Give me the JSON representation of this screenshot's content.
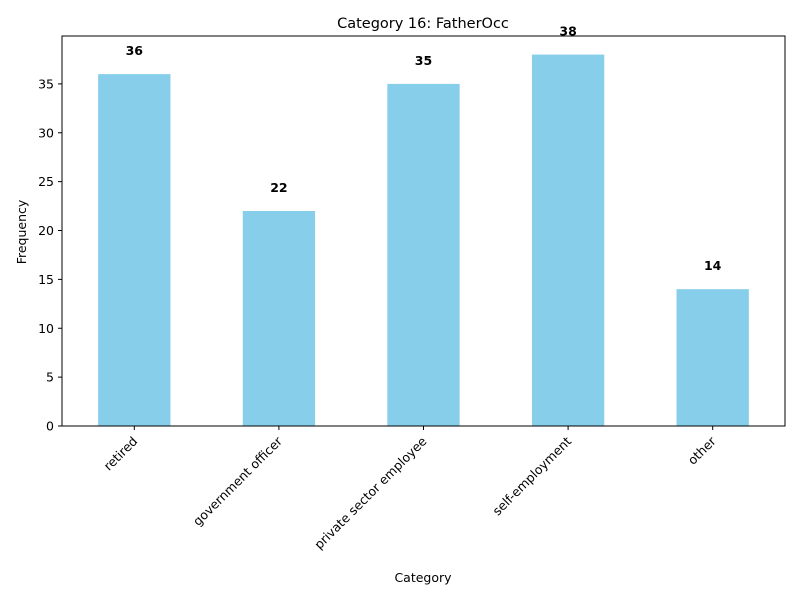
{
  "chart_data": {
    "type": "bar",
    "title": "Category 16: FatherOcc",
    "xlabel": "Category",
    "ylabel": "Frequency",
    "categories": [
      "retired",
      "government officer",
      "private sector employee",
      "self-employment",
      "other"
    ],
    "values": [
      36,
      22,
      35,
      38,
      14
    ],
    "data_labels": [
      "36",
      "22",
      "35",
      "38",
      "14"
    ],
    "ylim": [
      0,
      39.9
    ],
    "yticks": [
      0,
      5,
      10,
      15,
      20,
      25,
      30,
      35
    ],
    "ytick_labels": [
      "0",
      "5",
      "10",
      "15",
      "20",
      "25",
      "30",
      "35"
    ],
    "bar_color": "#87ceeb",
    "grid": false,
    "legend": "none",
    "xtick_rotation": 45
  }
}
